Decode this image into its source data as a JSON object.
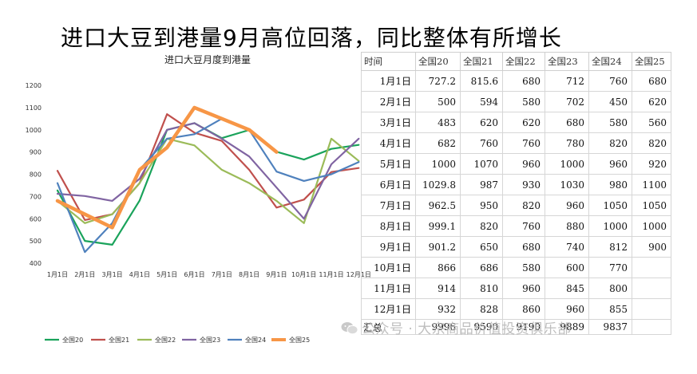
{
  "headline": "进口大豆到港量9月高位回落，同比整体有所增长",
  "chart_data": {
    "type": "line",
    "title": "进口大豆月度到港量",
    "categories": [
      "1月1日",
      "2月1日",
      "3月1日",
      "4月1日",
      "5月1日",
      "6月1日",
      "7月1日",
      "8月1日",
      "9月1日",
      "10月1日",
      "11月1日",
      "12月1日"
    ],
    "ylim": [
      400,
      1200
    ],
    "yticks": [
      400,
      500,
      600,
      700,
      800,
      900,
      1000,
      1100,
      1200
    ],
    "series": [
      {
        "name": "全国20",
        "color": "#1aa35b",
        "width": 2.2,
        "values": [
          727.2,
          500,
          483,
          682,
          1000,
          1029.8,
          962.5,
          999.1,
          901.2,
          866,
          914,
          932
        ]
      },
      {
        "name": "全国21",
        "color": "#c0504d",
        "width": 2.2,
        "values": [
          815.6,
          594,
          620,
          760,
          1070,
          987,
          950,
          820,
          650,
          686,
          810,
          828
        ]
      },
      {
        "name": "全国22",
        "color": "#9bbb59",
        "width": 2.2,
        "values": [
          680,
          580,
          620,
          760,
          960,
          930,
          820,
          760,
          680,
          580,
          960,
          860
        ]
      },
      {
        "name": "全国23",
        "color": "#8064a2",
        "width": 2.2,
        "values": [
          712,
          702,
          680,
          780,
          1000,
          1030,
          960,
          880,
          740,
          600,
          845,
          960
        ]
      },
      {
        "name": "全国24",
        "color": "#4f81bd",
        "width": 2.2,
        "values": [
          760,
          450,
          580,
          820,
          960,
          980,
          1050,
          1000,
          812,
          770,
          800,
          855
        ]
      },
      {
        "name": "全国25",
        "color": "#f79646",
        "width": 4.5,
        "values": [
          680,
          620,
          560,
          820,
          920,
          1100,
          1050,
          1000,
          900,
          null,
          null,
          null
        ]
      }
    ]
  },
  "table": {
    "headers": [
      "时间",
      "全国20",
      "全国21",
      "全国22",
      "全国23",
      "全国24",
      "全国25"
    ],
    "rows": [
      [
        "1月1日",
        "727.2",
        "815.6",
        "680",
        "712",
        "760",
        "680"
      ],
      [
        "2月1日",
        "500",
        "594",
        "580",
        "702",
        "450",
        "620"
      ],
      [
        "3月1日",
        "483",
        "620",
        "620",
        "680",
        "580",
        "560"
      ],
      [
        "4月1日",
        "682",
        "760",
        "760",
        "780",
        "820",
        "820"
      ],
      [
        "5月1日",
        "1000",
        "1070",
        "960",
        "1000",
        "960",
        "920"
      ],
      [
        "6月1日",
        "1029.8",
        "987",
        "930",
        "1030",
        "980",
        "1100"
      ],
      [
        "7月1日",
        "962.5",
        "950",
        "820",
        "960",
        "1050",
        "1050"
      ],
      [
        "8月1日",
        "999.1",
        "820",
        "760",
        "880",
        "1000",
        "1000"
      ],
      [
        "9月1日",
        "901.2",
        "650",
        "680",
        "740",
        "812",
        "900"
      ],
      [
        "10月1日",
        "866",
        "686",
        "580",
        "600",
        "770",
        ""
      ],
      [
        "11月1日",
        "914",
        "810",
        "960",
        "845",
        "800",
        ""
      ],
      [
        "12月1日",
        "932",
        "828",
        "860",
        "960",
        "855",
        ""
      ]
    ],
    "total": [
      "汇总",
      "9996",
      "9590",
      "9190",
      "9889",
      "9837",
      ""
    ]
  },
  "watermark": "公众号 · 大宗商品价值投资俱乐部"
}
